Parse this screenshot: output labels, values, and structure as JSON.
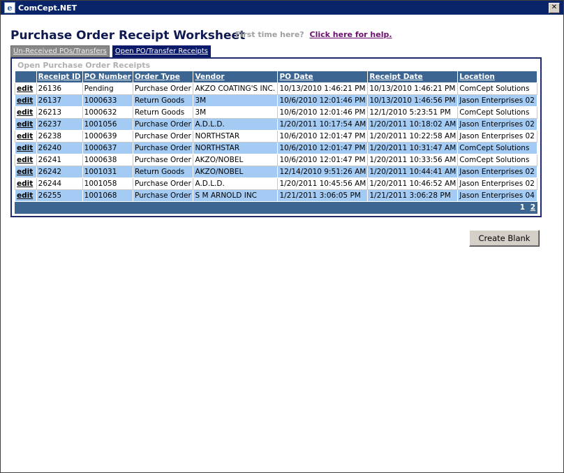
{
  "window": {
    "title": "ComCept.NET",
    "icon": "ie-page-icon",
    "close_label": "✕"
  },
  "page": {
    "title": "Purchase Order Receipt Worksheet",
    "first_time_text": "First time here?",
    "help_link": "Click here for help."
  },
  "tabs": [
    {
      "label": "Un-Received POs/Transfers",
      "active": false
    },
    {
      "label": "Open PO/Transfer Receipts",
      "active": true
    }
  ],
  "panel": {
    "caption": "Open Purchase Order Receipts",
    "columns": [
      "",
      "Receipt ID",
      "PO Number",
      "Order Type",
      "Vendor",
      "PO Date",
      "Receipt Date",
      "Location"
    ],
    "rows": [
      [
        "edit",
        "26136",
        "Pending",
        "Purchase Order",
        "AKZO COATING'S INC.",
        "10/13/2010 1:46:21 PM",
        "10/13/2010 1:46:21 PM",
        "ComCept Solutions"
      ],
      [
        "edit",
        "26137",
        "1000633",
        "Return Goods",
        "3M",
        "10/6/2010 12:01:46 PM",
        "10/13/2010 1:46:56 PM",
        "Jason Enterprises 02"
      ],
      [
        "edit",
        "26213",
        "1000632",
        "Return Goods",
        "3M",
        "10/6/2010 12:01:46 PM",
        "12/1/2010 5:23:51 PM",
        "ComCept Solutions"
      ],
      [
        "edit",
        "26237",
        "1001056",
        "Purchase Order",
        "A.D.L.D.",
        "1/20/2011 10:17:54 AM",
        "1/20/2011 10:18:02 AM",
        "Jason Enterprises 02"
      ],
      [
        "edit",
        "26238",
        "1000639",
        "Purchase Order",
        "NORTHSTAR",
        "10/6/2010 12:01:47 PM",
        "1/20/2011 10:22:58 AM",
        "Jason Enterprises 02"
      ],
      [
        "edit",
        "26240",
        "1000637",
        "Purchase Order",
        "NORTHSTAR",
        "10/6/2010 12:01:47 PM",
        "1/20/2011 10:31:47 AM",
        "ComCept Solutions"
      ],
      [
        "edit",
        "26241",
        "1000638",
        "Purchase Order",
        "AKZO/NOBEL",
        "10/6/2010 12:01:47 PM",
        "1/20/2011 10:33:56 AM",
        "ComCept Solutions"
      ],
      [
        "edit",
        "26242",
        "1001031",
        "Return Goods",
        "AKZO/NOBEL",
        "12/14/2010 9:51:26 AM",
        "1/20/2011 10:44:41 AM",
        "Jason Enterprises 02"
      ],
      [
        "edit",
        "26244",
        "1001058",
        "Purchase Order",
        "A.D.L.D.",
        "1/20/2011 10:45:56 AM",
        "1/20/2011 10:46:52 AM",
        "Jason Enterprises 02"
      ],
      [
        "edit",
        "26255",
        "1001068",
        "Purchase Order",
        "S M ARNOLD INC",
        "1/21/2011 3:06:05 PM",
        "1/21/2011 3:06:28 PM",
        "Jason Enterprises 04"
      ]
    ],
    "pager": {
      "current": "1",
      "next": "2"
    }
  },
  "buttons": {
    "create_blank": "Create Blank"
  },
  "colors": {
    "titlebar": "#0a246a",
    "header": "#3c6592",
    "alt_row": "#a4cbf3",
    "title_text": "#0f1a52",
    "help_link": "#6b0f6e"
  }
}
